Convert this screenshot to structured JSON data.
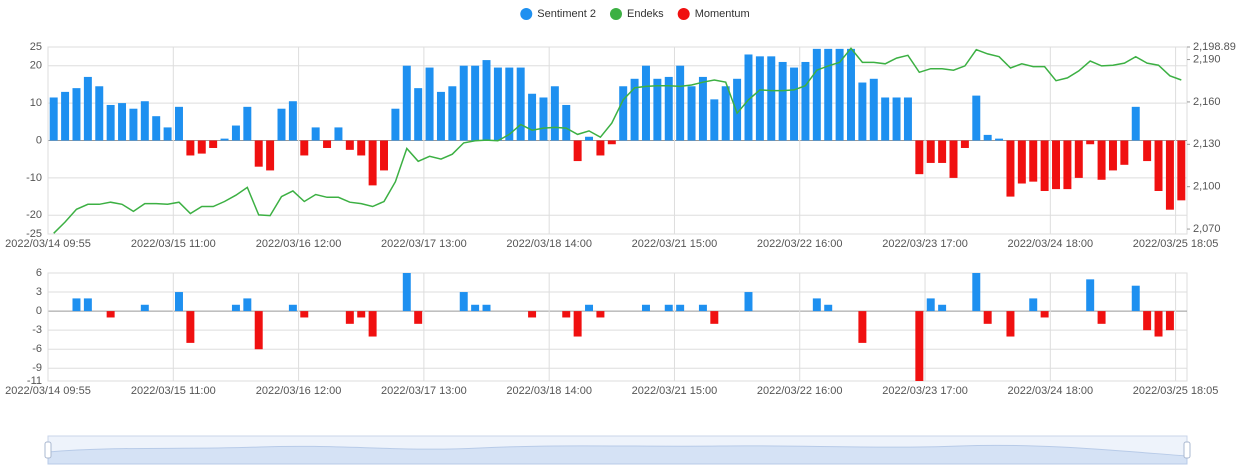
{
  "chart_data": [
    {
      "type": "combo",
      "legend": "top",
      "grid": true,
      "categories": [
        "2022/03/14 09:55",
        null,
        null,
        null,
        null,
        null,
        null,
        null,
        null,
        null,
        null,
        "2022/03/15 11:00",
        null,
        null,
        null,
        null,
        null,
        null,
        null,
        null,
        null,
        null,
        "2022/03/16 12:00",
        null,
        null,
        null,
        null,
        null,
        null,
        null,
        null,
        null,
        null,
        "2022/03/17 13:00",
        null,
        null,
        null,
        null,
        null,
        null,
        null,
        null,
        null,
        null,
        "2022/03/18 14:00",
        null,
        null,
        null,
        null,
        null,
        null,
        null,
        null,
        null,
        null,
        "2022/03/21 15:00",
        null,
        null,
        null,
        null,
        null,
        null,
        null,
        null,
        null,
        null,
        "2022/03/22 16:00",
        null,
        null,
        null,
        null,
        null,
        null,
        null,
        null,
        null,
        null,
        "2022/03/23 17:00",
        null,
        null,
        null,
        null,
        null,
        null,
        null,
        null,
        null,
        null,
        "2022/03/24 18:00",
        null,
        null,
        null,
        null,
        null,
        null,
        null,
        null,
        null,
        null,
        "2022/03/25 18:05"
      ],
      "ylim": [
        -25,
        25
      ],
      "yticks": [
        -25,
        -20,
        -10,
        0,
        10,
        20,
        25
      ],
      "y2lim": [
        2066.5,
        2198.89
      ],
      "y2ticks": [
        {
          "value": 2070,
          "label": "2,070"
        },
        {
          "value": 2100,
          "label": "2,100"
        },
        {
          "value": 2130,
          "label": "2,130"
        },
        {
          "value": 2160,
          "label": "2,160"
        },
        {
          "value": 2190,
          "label": "2,190"
        },
        {
          "value": 2198.89,
          "label": "2,198.89"
        }
      ],
      "series": [
        {
          "name": "Sentiment 2",
          "type": "bar",
          "color": "#1e90f0",
          "values": [
            11.5,
            13,
            14,
            17,
            14.5,
            9.5,
            10,
            8.5,
            10.5,
            6.5,
            3.5,
            9,
            null,
            null,
            null,
            0.5,
            4,
            9,
            null,
            null,
            8.5,
            10.5,
            null,
            3.5,
            null,
            3.5,
            null,
            null,
            null,
            null,
            8.5,
            20,
            14,
            19.5,
            13,
            14.5,
            20,
            20,
            21.5,
            19.5,
            19.5,
            19.5,
            12.5,
            11.5,
            14.5,
            9.5,
            null,
            1,
            null,
            null,
            14.5,
            16.5,
            20,
            16.5,
            17,
            20,
            14.5,
            17,
            11,
            14.5,
            16.5,
            23,
            22.5,
            22.5,
            21,
            19.5,
            21,
            24.5,
            24.5,
            24.5,
            24.5,
            15.5,
            16.5,
            11.5,
            11.5,
            11.5,
            null,
            null,
            null,
            null,
            null,
            12,
            1.5,
            0.5,
            null,
            null,
            null,
            null,
            null,
            null,
            null,
            null,
            null,
            null,
            null,
            9,
            null,
            null,
            null,
            null
          ]
        },
        {
          "name": "Endeks",
          "type": "line",
          "axis": "y2",
          "color": "#3cb043",
          "values": [
            2067,
            2075,
            2084,
            2087.5,
            2087.5,
            2089,
            2087.5,
            2082.5,
            2088,
            2088,
            2087.5,
            2089,
            2081,
            2086,
            2086,
            2089.5,
            2094,
            2099.5,
            2080,
            2079.5,
            2093,
            2097,
            2089.5,
            2094.5,
            2092.5,
            2092.5,
            2089,
            2088,
            2086,
            2089.5,
            2103.5,
            2127,
            2118,
            2121.5,
            2119.5,
            2123,
            2131,
            2132.5,
            2133,
            2132.5,
            2137,
            2144,
            2140,
            2141.5,
            2142,
            2141.5,
            2137,
            2139.5,
            2135,
            2145,
            2161.5,
            2170,
            2171,
            2171.5,
            2171.5,
            2171,
            2172,
            2174,
            2175.5,
            2174,
            2152,
            2161.5,
            2168.5,
            2168,
            2168,
            2168.5,
            2171.5,
            2182.5,
            2185.5,
            2188,
            2198,
            2188,
            2188,
            2187,
            2191,
            2193,
            2181,
            2183.5,
            2183.5,
            2182.5,
            2185.5,
            2197,
            2194,
            2192,
            2184,
            2187,
            2185,
            2185,
            2175,
            2177,
            2182,
            2189,
            2185.5,
            2186,
            2187.5,
            2192,
            2187.5,
            2186,
            2178.5,
            2175.5
          ]
        },
        {
          "name": "Momentum",
          "type": "bar",
          "color": "#f01010",
          "values": [
            null,
            null,
            null,
            null,
            null,
            null,
            null,
            null,
            null,
            null,
            null,
            null,
            -4,
            -3.5,
            -2,
            null,
            null,
            null,
            -7,
            -8,
            null,
            null,
            -4,
            null,
            -2,
            null,
            -2.5,
            -4,
            -12,
            -8,
            null,
            null,
            null,
            null,
            null,
            null,
            null,
            null,
            null,
            null,
            null,
            null,
            null,
            null,
            null,
            null,
            -5.5,
            null,
            -4,
            -1,
            null,
            null,
            null,
            null,
            null,
            null,
            null,
            null,
            null,
            null,
            null,
            null,
            null,
            null,
            null,
            null,
            null,
            null,
            null,
            null,
            null,
            null,
            null,
            null,
            null,
            null,
            -9,
            -6,
            -6,
            -10,
            -2,
            null,
            null,
            null,
            -15,
            -11.5,
            -11,
            -13.5,
            -13,
            -13,
            -10,
            -1,
            -10.5,
            -8,
            -6.5,
            null,
            -5.5,
            -13.5,
            -18.5,
            -16
          ]
        }
      ]
    },
    {
      "type": "bar",
      "grid": true,
      "color_up": "#1e90f0",
      "color_down": "#f01010",
      "categories": [
        "2022/03/14 09:55",
        null,
        null,
        null,
        null,
        null,
        null,
        null,
        null,
        null,
        null,
        "2022/03/15 11:00",
        null,
        null,
        null,
        null,
        null,
        null,
        null,
        null,
        null,
        null,
        "2022/03/16 12:00",
        null,
        null,
        null,
        null,
        null,
        null,
        null,
        null,
        null,
        null,
        "2022/03/17 13:00",
        null,
        null,
        null,
        null,
        null,
        null,
        null,
        null,
        null,
        null,
        "2022/03/18 14:00",
        null,
        null,
        null,
        null,
        null,
        null,
        null,
        null,
        null,
        null,
        "2022/03/21 15:00",
        null,
        null,
        null,
        null,
        null,
        null,
        null,
        null,
        null,
        null,
        "2022/03/22 16:00",
        null,
        null,
        null,
        null,
        null,
        null,
        null,
        null,
        null,
        null,
        "2022/03/23 17:00",
        null,
        null,
        null,
        null,
        null,
        null,
        null,
        null,
        null,
        null,
        "2022/03/24 18:00",
        null,
        null,
        null,
        null,
        null,
        null,
        null,
        null,
        null,
        null,
        "2022/03/25 18:05"
      ],
      "ylim": [
        -11,
        6
      ],
      "yticks": [
        -11,
        -9,
        -6,
        -3,
        0,
        3,
        6
      ],
      "values": [
        null,
        null,
        2,
        2,
        null,
        -1,
        null,
        null,
        1,
        null,
        null,
        3,
        -5,
        null,
        null,
        null,
        1,
        2,
        -6,
        null,
        null,
        1,
        -1,
        null,
        null,
        null,
        -2,
        -1,
        -4,
        null,
        null,
        6,
        -2,
        null,
        null,
        null,
        3,
        1,
        1,
        null,
        null,
        null,
        -1,
        null,
        null,
        -1,
        -4,
        1,
        -1,
        null,
        null,
        null,
        1,
        null,
        1,
        1,
        null,
        1,
        -2,
        null,
        null,
        3,
        null,
        null,
        null,
        null,
        null,
        2,
        1,
        null,
        null,
        -5,
        null,
        null,
        null,
        null,
        -11,
        2,
        1,
        null,
        null,
        6,
        -2,
        null,
        -4,
        null,
        2,
        -1,
        null,
        null,
        null,
        5,
        -2,
        null,
        null,
        4,
        -3,
        -4,
        -3,
        null
      ]
    }
  ]
}
